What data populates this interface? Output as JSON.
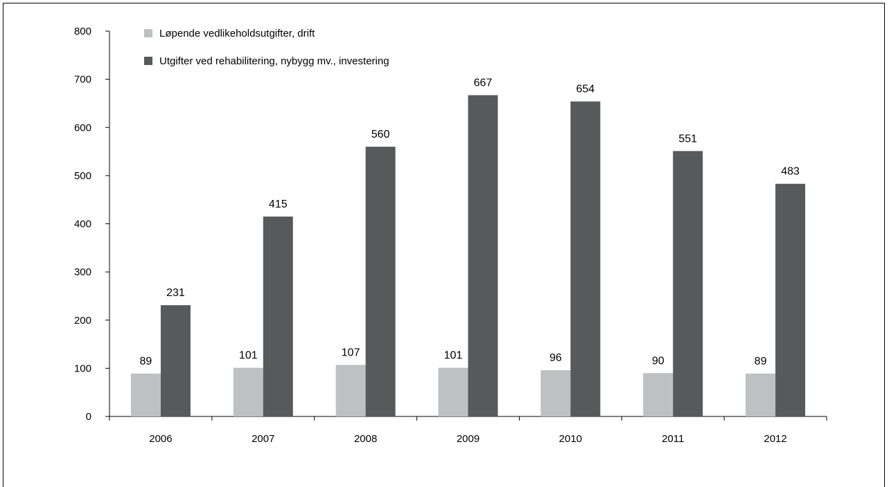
{
  "chart_data": {
    "type": "bar",
    "categories": [
      "2006",
      "2007",
      "2008",
      "2009",
      "2010",
      "2011",
      "2012"
    ],
    "series": [
      {
        "name": "Løpende vedlikeholdsutgifter, drift",
        "color": "#bfc0c2",
        "values": [
          89,
          101,
          107,
          101,
          96,
          90,
          89
        ]
      },
      {
        "name": "Utgifter ved rehabilitering, nybygg mv., investering",
        "color": "#58595b",
        "values": [
          231,
          415,
          560,
          667,
          654,
          551,
          483
        ]
      }
    ],
    "ylim": [
      0,
      800
    ],
    "yticks": [
      0,
      100,
      200,
      300,
      400,
      500,
      600,
      700,
      800
    ],
    "title": "",
    "xlabel": "",
    "ylabel": "",
    "grid": false,
    "legend": "top-left",
    "data_labels": true
  }
}
